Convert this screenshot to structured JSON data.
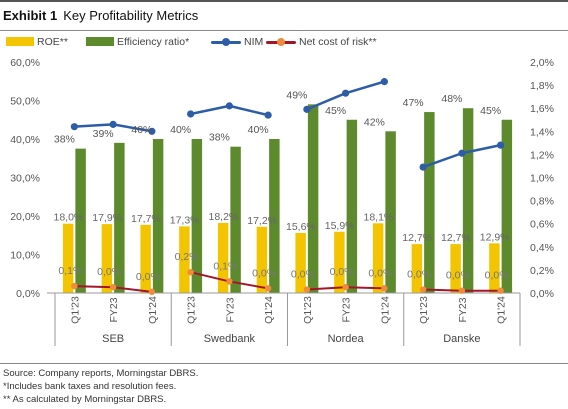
{
  "header": {
    "exhibit": "Exhibit 1",
    "title": "Key Profitability Metrics"
  },
  "colors": {
    "roe": "#F2C500",
    "efficiency": "#5E8A2E",
    "nim": "#2E5DA8",
    "ncr": "#A3162A",
    "ncr_marker": "#F08A3C"
  },
  "chart_data": {
    "type": "bar",
    "groups": [
      "SEB",
      "Swedbank",
      "Nordea",
      "Danske"
    ],
    "categories": [
      "Q1'23",
      "FY23",
      "Q1'24",
      "Q1'23",
      "FY23",
      "Q1'24",
      "Q1'23",
      "FY23",
      "Q1'24",
      "Q1'23",
      "FY23",
      "Q1'24"
    ],
    "category_group": [
      "SEB",
      "SEB",
      "SEB",
      "Swedbank",
      "Swedbank",
      "Swedbank",
      "Nordea",
      "Nordea",
      "Nordea",
      "Danske",
      "Danske",
      "Danske"
    ],
    "legend_position": "top",
    "grid": false,
    "left_axis": {
      "ylim": [
        0,
        60
      ],
      "ticks": [
        "0,0%",
        "10,0%",
        "20,0%",
        "30,0%",
        "40,0%",
        "50,0%",
        "60,0%"
      ]
    },
    "right_axis": {
      "ylim": [
        0,
        2.0
      ],
      "ticks": [
        "0,0%",
        "0,2%",
        "0,4%",
        "0,6%",
        "0,8%",
        "1,0%",
        "1,2%",
        "1,4%",
        "1,6%",
        "1,8%",
        "2,0%"
      ]
    },
    "series": [
      {
        "name": "ROE**",
        "kind": "bar",
        "axis": "left",
        "values": [
          18.0,
          17.9,
          17.7,
          17.3,
          18.2,
          17.2,
          15.6,
          15.9,
          18.1,
          12.7,
          12.7,
          12.9
        ],
        "labels": [
          "18,0%",
          "17,9%",
          "17,7%",
          "17,3%",
          "18,2%",
          "17,2%",
          "15,6%",
          "15,9%",
          "18,1%",
          "12,7%",
          "12,7%",
          "12,9%"
        ]
      },
      {
        "name": "Efficiency ratio*",
        "kind": "bar",
        "axis": "left",
        "values": [
          37.5,
          39.0,
          40.0,
          40.0,
          38.0,
          40.0,
          49.0,
          45.0,
          42.0,
          47.0,
          48.0,
          45.0
        ],
        "labels": [
          "38%",
          "39%",
          "40%",
          "40%",
          "38%",
          "40%",
          "49%",
          "45%",
          "42%",
          "47%",
          "48%",
          "45%"
        ]
      },
      {
        "name": "NIM",
        "kind": "line",
        "axis": "right",
        "values": [
          1.44,
          1.46,
          1.4,
          1.55,
          1.62,
          1.54,
          1.59,
          1.73,
          1.83,
          1.09,
          1.21,
          1.28
        ]
      },
      {
        "name": "Net cost of risk**",
        "kind": "line",
        "axis": "right",
        "values": [
          0.06,
          0.05,
          0.01,
          0.18,
          0.1,
          0.04,
          0.03,
          0.05,
          0.04,
          0.03,
          0.02,
          0.02
        ],
        "labels": [
          "0,1%",
          "0,0%",
          "0,0%",
          "0,2%",
          "0,1%",
          "0,0%",
          "0,0%",
          "0,0%",
          "0,0%",
          "0,0%",
          "0,0%",
          "0,0%"
        ]
      }
    ]
  },
  "footer": {
    "source": "Source: Company reports, Morningstar DBRS.",
    "note1": "*Includes bank taxes and resolution fees.",
    "note2": "** As calculated by Morningstar DBRS."
  }
}
